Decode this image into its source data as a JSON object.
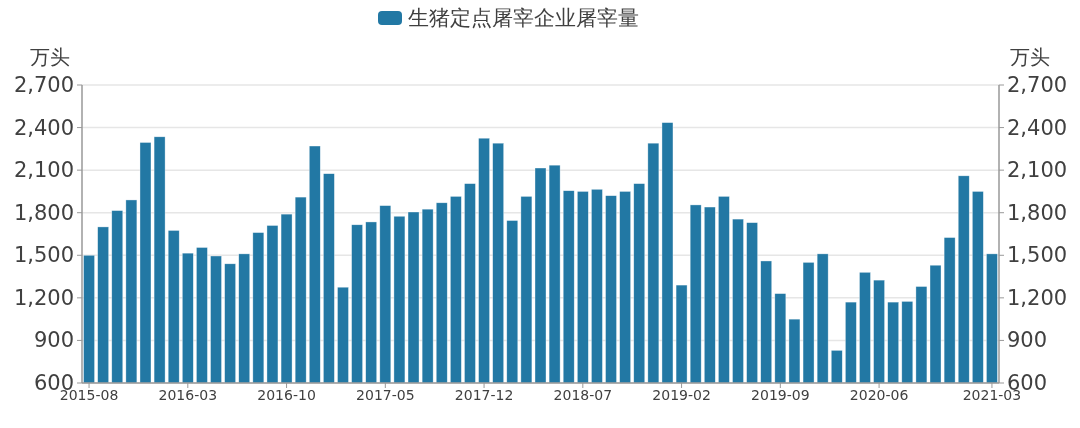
{
  "chart_data": {
    "type": "bar",
    "ylabel": "万头",
    "y2label": "万头",
    "categories": [
      "2015-08",
      null,
      null,
      null,
      null,
      null,
      null,
      "2016-03",
      null,
      null,
      null,
      null,
      null,
      null,
      "2016-10",
      null,
      null,
      null,
      null,
      null,
      null,
      "2017-05",
      null,
      null,
      null,
      null,
      null,
      null,
      "2017-12",
      null,
      null,
      null,
      null,
      null,
      null,
      "2018-07",
      null,
      null,
      null,
      null,
      null,
      null,
      "2019-02",
      null,
      null,
      null,
      null,
      null,
      null,
      "2019-09",
      null,
      null,
      null,
      null,
      null,
      null,
      "2020-06",
      null,
      null,
      null,
      null,
      null,
      null,
      null,
      "2021-03"
    ],
    "series": [
      {
        "name": "生猪定点屠宰企业屠宰量",
        "color": "#2278a4",
        "axis": "y",
        "values": [
          1500,
          1700,
          1815,
          1890,
          2295,
          2335,
          1675,
          1515,
          1555,
          1495,
          1440,
          1510,
          1660,
          1710,
          1790,
          1910,
          2270,
          2075,
          1275,
          1715,
          1735,
          1850,
          1775,
          1805,
          1825,
          1870,
          1915,
          2005,
          2325,
          2290,
          1745,
          1915,
          2115,
          2135,
          1955,
          1950,
          1965,
          1920,
          1950,
          2005,
          2290,
          2435,
          1290,
          1855,
          1840,
          1915,
          1755,
          1730,
          1460,
          1230,
          1050,
          1450,
          1510,
          830,
          1170,
          1380,
          1325,
          1170,
          1175,
          1280,
          1430,
          1625,
          2060,
          1950,
          1510
        ]
      }
    ],
    "ylim": [
      600,
      2700
    ],
    "yticks": [
      600,
      900,
      {
        "value": 1200,
        "label": "1,200"
      },
      {
        "value": 1500,
        "label": "1,500"
      },
      {
        "value": 1800,
        "label": "1,800"
      },
      {
        "value": 2100,
        "label": "2,100"
      },
      {
        "value": 2400,
        "label": "2,400"
      },
      {
        "value": 2700,
        "label": "2,700"
      }
    ],
    "y2lim": [
      600,
      2700
    ],
    "y2ticks": [
      600,
      900,
      {
        "value": 1200,
        "label": "1,200"
      },
      {
        "value": 1500,
        "label": "1,500"
      },
      {
        "value": 1800,
        "label": "1,800"
      },
      {
        "value": 2100,
        "label": "2,100"
      },
      {
        "value": 2400,
        "label": "2,400"
      },
      {
        "value": 2700,
        "label": "2,700"
      }
    ],
    "grid": "y",
    "legend": "top"
  }
}
